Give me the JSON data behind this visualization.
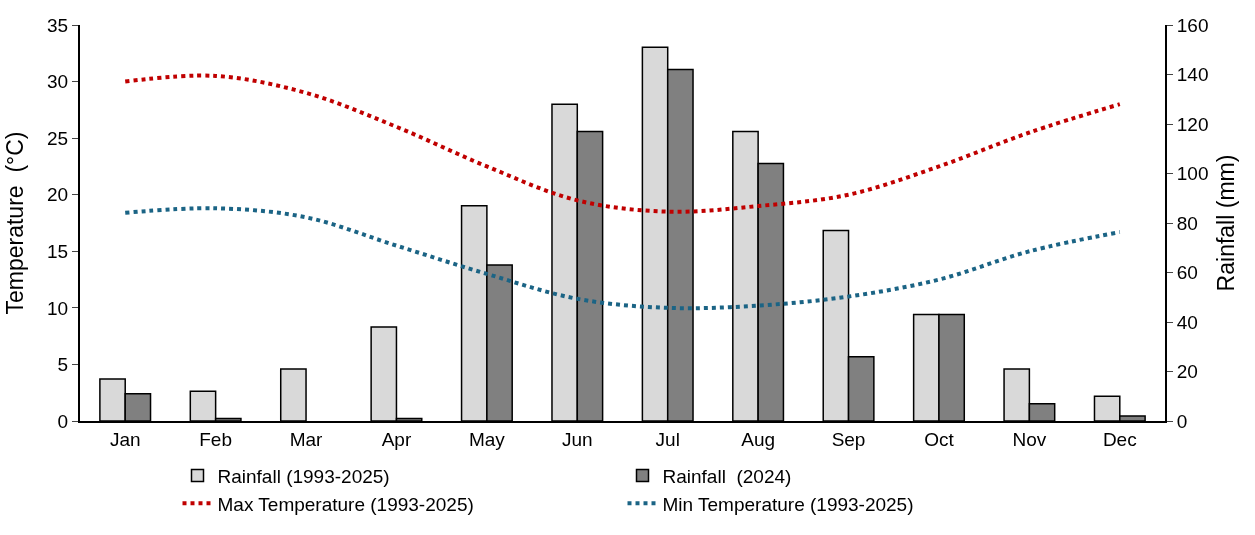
{
  "chart_data": {
    "type": "bar",
    "ylabel": "Temperature  (°C)",
    "y2label": "Rainfall (mm)",
    "categories": [
      "Jan",
      "Feb",
      "Mar",
      "Apr",
      "May",
      "Jun",
      "Jul",
      "Aug",
      "Sep",
      "Oct",
      "Nov",
      "Dec"
    ],
    "series": [
      {
        "name": "Rainfall (1993-2025)",
        "axis": "y2",
        "color": "#d9d9d9",
        "values": [
          17,
          12,
          21,
          38,
          87,
          128,
          151,
          117,
          77,
          43,
          21,
          10
        ]
      },
      {
        "name": "Rainfall  (2024)",
        "axis": "y2",
        "color": "#808080",
        "values": [
          11,
          1,
          0,
          1,
          63,
          117,
          142,
          104,
          26,
          43,
          7,
          2
        ]
      },
      {
        "name": "Max Temperature (1993-2025)",
        "type": "line",
        "line_style": "dotted",
        "color": "#c00000",
        "values": [
          30,
          30.5,
          29,
          26,
          22.5,
          19.5,
          18.5,
          19,
          20,
          22.5,
          25.5,
          28
        ]
      },
      {
        "name": "Min Temperature (1993-2025)",
        "type": "line",
        "line_style": "dotted",
        "color": "#1b6485",
        "values": [
          18.4,
          18.8,
          18,
          15.5,
          13,
          10.8,
          10,
          10.2,
          11,
          12.5,
          15,
          16.7
        ]
      }
    ],
    "ylim": [
      0,
      35
    ],
    "yticks": [
      0,
      5,
      10,
      15,
      20,
      25,
      30,
      35
    ],
    "y2lim": [
      0,
      160
    ],
    "y2ticks": [
      0,
      20,
      40,
      60,
      80,
      100,
      120,
      140,
      160
    ],
    "grid": false,
    "legend": "bottom",
    "marker": "none"
  }
}
